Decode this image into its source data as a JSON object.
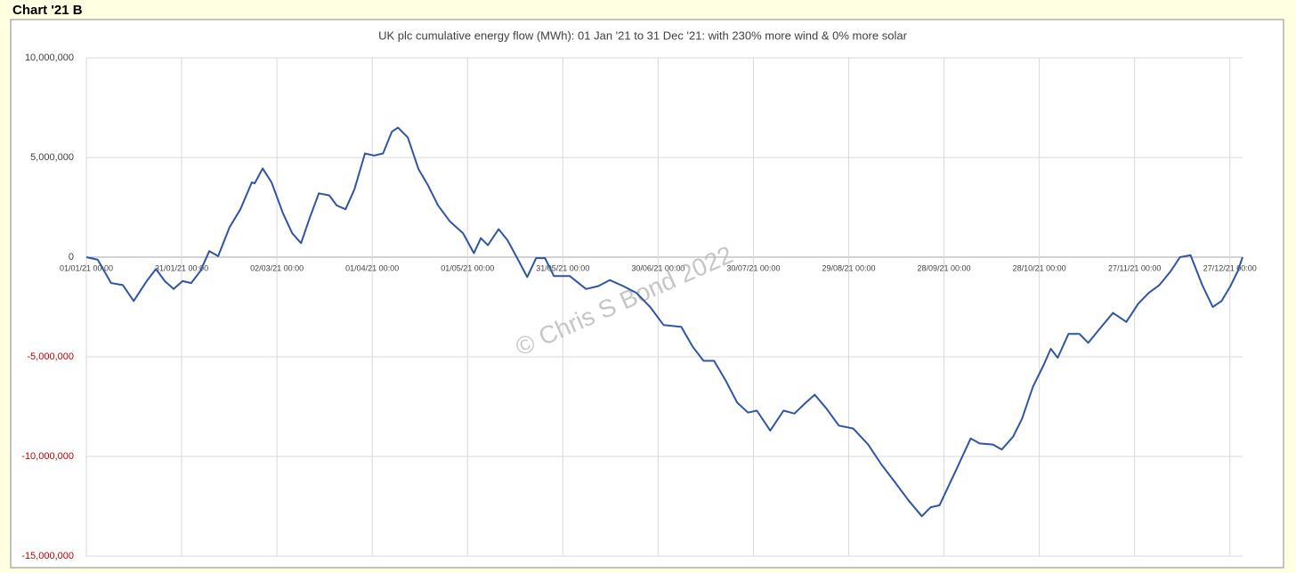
{
  "page_label": "Chart '21 B",
  "chart_data": {
    "type": "line",
    "title": "UK plc cumulative energy flow (MWh): 01 Jan '21 to 31 Dec '21: with 230% more wind & 0% more solar",
    "watermark": "© Chris S Bond 2022",
    "series": [
      {
        "color": "#2f55a4",
        "x": [
          0,
          3.6,
          7.8,
          11.5,
          14.9,
          19,
          21.9,
          24.7,
          27.5,
          30.3,
          33,
          35.9,
          38.7,
          41.5,
          45.1,
          48.5,
          52.1,
          53,
          55.5,
          58.3,
          61.9,
          64.8,
          67.6,
          70.4,
          73.2,
          76.5,
          78.8,
          81.6,
          84.4,
          87.7,
          90.6,
          93.4,
          96.2,
          98.1,
          101.2,
          104.6,
          107.4,
          110.7,
          114.4,
          118.6,
          122,
          124.2,
          126.4,
          129.8,
          132.6,
          136,
          138.8,
          141.6,
          144.4,
          147.2,
          152.2,
          157.3,
          161.2,
          164.8,
          169,
          173.2,
          177.5,
          181.7,
          187.3,
          190.9,
          194.3,
          197.6,
          201.3,
          204.9,
          208.3,
          211.1,
          215.3,
          219.5,
          222.9,
          226.5,
          229.3,
          233,
          236.9,
          241.4,
          246.1,
          250.3,
          254.6,
          258.8,
          263,
          265.8,
          268.6,
          274.2,
          278.4,
          281.2,
          285.4,
          288.2,
          291.8,
          294.6,
          298,
          301.4,
          303.6,
          305.8,
          309.2,
          312.6,
          315.4,
          319,
          323.2,
          327.4,
          331.1,
          334.4,
          337.8,
          341.4,
          344.3,
          347.6,
          351.3,
          354.6,
          357.4,
          360.2,
          362.5,
          364
        ],
        "values": [
          0,
          -130000,
          -1300000,
          -1400000,
          -2200000,
          -1200000,
          -600000,
          -1200000,
          -1600000,
          -1200000,
          -1300000,
          -700000,
          300000,
          50000,
          1500000,
          2400000,
          3750000,
          3700000,
          4450000,
          3750000,
          2200000,
          1200000,
          700000,
          2000000,
          3200000,
          3100000,
          2600000,
          2400000,
          3400000,
          5200000,
          5100000,
          5200000,
          6300000,
          6500000,
          6000000,
          4400000,
          3650000,
          2600000,
          1800000,
          1200000,
          200000,
          950000,
          600000,
          1400000,
          850000,
          -150000,
          -1000000,
          -50000,
          -50000,
          -950000,
          -950000,
          -1600000,
          -1450000,
          -1150000,
          -1450000,
          -1800000,
          -2500000,
          -3400000,
          -3500000,
          -4500000,
          -5200000,
          -5200000,
          -6200000,
          -7300000,
          -7800000,
          -7700000,
          -8700000,
          -7700000,
          -7850000,
          -7300000,
          -6900000,
          -7600000,
          -8450000,
          -8600000,
          -9400000,
          -10400000,
          -11300000,
          -12200000,
          -13000000,
          -12550000,
          -12450000,
          -10550000,
          -9100000,
          -9350000,
          -9400000,
          -9650000,
          -9000000,
          -8100000,
          -6500000,
          -5400000,
          -4600000,
          -5050000,
          -3850000,
          -3850000,
          -4300000,
          -3600000,
          -2800000,
          -3250000,
          -2350000,
          -1800000,
          -1400000,
          -700000,
          0,
          100000,
          -1400000,
          -2500000,
          -2200000,
          -1450000,
          -700000,
          0
        ]
      }
    ],
    "xlim": [
      0,
      364
    ],
    "xticks": [
      {
        "value": 0,
        "label": "01/01/21 00:00"
      },
      {
        "value": 30,
        "label": "31/01/21 00:00"
      },
      {
        "value": 60,
        "label": "02/03/21 00:00"
      },
      {
        "value": 90,
        "label": "01/04/21 00:00"
      },
      {
        "value": 120,
        "label": "01/05/21 00:00"
      },
      {
        "value": 150,
        "label": "31/05/21 00:00"
      },
      {
        "value": 180,
        "label": "30/06/21 00:00"
      },
      {
        "value": 210,
        "label": "30/07/21 00:00"
      },
      {
        "value": 240,
        "label": "29/08/21 00:00"
      },
      {
        "value": 270,
        "label": "28/09/21 00:00"
      },
      {
        "value": 300,
        "label": "28/10/21 00:00"
      },
      {
        "value": 330,
        "label": "27/11/21 00:00"
      },
      {
        "value": 360,
        "label": "27/12/21 00:00"
      }
    ],
    "ylim": [
      -15000000,
      10000000
    ],
    "yticks": [
      {
        "value": 10000000,
        "label": "10,000,000"
      },
      {
        "value": 5000000,
        "label": "5,000,000"
      },
      0,
      {
        "value": -5000000,
        "label": "-5,000,000"
      },
      {
        "value": -10000000,
        "label": "-10,000,000"
      },
      {
        "value": -15000000,
        "label": "-15,000,000"
      }
    ],
    "grid": true,
    "negative_tick_color": "#c00000"
  }
}
